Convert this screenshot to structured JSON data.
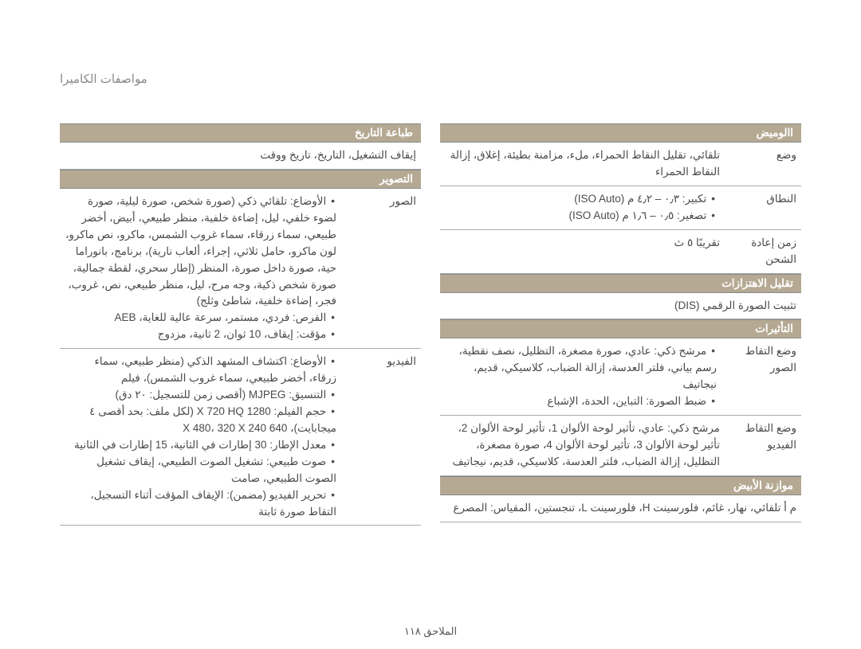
{
  "pageTitle": "مواصفات الكاميرا",
  "footer": "الملاحق ١١٨",
  "colRight": {
    "flash": {
      "header": "االوميض",
      "mode": {
        "label": "وضع",
        "value": "تلقائي، تقليل النقاط الحمراء، ملء، مزامنة بطيئة، إغلاق، إزالة النقاط الحمراء"
      },
      "range": {
        "label": "النطاق",
        "items": [
          "تكبير: ٠٫٣ – ٤٫٢ م (ISO Auto)",
          "تصغير: ٠٫٥ – ١٫٦ م (ISO Auto)"
        ]
      },
      "recharge": {
        "label": "زمن إعادة الشحن",
        "value": "تقريبًا ٥ ث"
      }
    },
    "shake": {
      "header": "تقليل الاهتزازات",
      "value": "تثبيت الصورة الرقمي (DIS)"
    },
    "effects": {
      "header": "التأثيرات",
      "photo": {
        "label": "وضع التقاط الصور",
        "items": [
          "مرشح ذكي: عادي، صورة مصغرة، التظليل، نصف نقطية، رسم بياني، فلتر العدسة، إزالة الضباب، كلاسيكي، قديم، نيجاتيف",
          "ضبط الصورة: التباين، الحدة، الإشباع"
        ]
      },
      "video": {
        "label": "وضع التقاط الفيديو",
        "value": "مرشح ذكي: عادي، تأثير لوحة الألوان 1، تأثير لوحة الألوان 2، تأثير لوحة الألوان 3، تأثير لوحة الألوان 4، صورة مصغرة، التظليل، إزالة الضباب، فلتر العدسة، كلاسيكي، قديم، نيجاتيف"
      }
    },
    "wb": {
      "header": "موازنة الأبيض",
      "value": "م أ تلقائي، نهار، غائم، فلورسينت H، فلورسينت L، تنجستين، المقياس: المصرع"
    }
  },
  "colLeft": {
    "date": {
      "header": "طباعة التاريخ",
      "value": "إيقاف التشغيل، التاريخ، تاريخ ووقت"
    },
    "shooting": {
      "header": "التصوير",
      "photos": {
        "label": "الصور",
        "items": [
          "الأوضاع: تلقائي ذكي (صورة شخص، صورة ليلية، صورة لضوء خلفي، ليل، إضاءة خلفية، منظر طبيعي، أبيض، أخضر طبيعي، سماء زرقاء، سماء غروب الشمس، ماكرو، نص ماكرو، لون ماكرو، حامل ثلاثي، إجراء، ألعاب نارية)، برنامج، بانوراما حية، صورة داخل صورة، المنظر (إطار سحري، لقطة جمالية، صورة شخص ذكية، وجه مرح، ليل، منظر طبيعي، نص، غروب، فجر، إضاءة خلفية، شاطئ وثلج)",
          "القرص: فردي، مستمر، سرعة عالية للغاية، AEB",
          "مؤقت: إيقاف، 10 ثوان، 2 ثانية، مزدوج"
        ]
      },
      "video": {
        "label": "الفيديو",
        "items": [
          "الأوضاع: اكتشاف المشهد الذكي (منظر طبيعي، سماء زرقاء، أخضر طبيعي، سماء غروب الشمس)، فيلم",
          "التنسيق: MJPEG (أقصى زمن للتسجيل: ٢٠ دق)",
          "حجم الفيلم: 1280 X 720 HQ (لكل ملف: بحد أقصى ٤ ميجابايت)، 640 X 480، 320 X 240",
          "معدل الإطار: 30 إطارات في الثانية، 15 إطارات في الثانية",
          "صوت طبيعي: تشغيل الصوت الطبيعي، إيقاف تشغيل الصوت الطبيعي، صامت",
          "تحرير الفيديو (مضمن): الإيقاف المؤقت أثناء التسجيل، التقاط صورة ثابتة"
        ]
      }
    }
  }
}
